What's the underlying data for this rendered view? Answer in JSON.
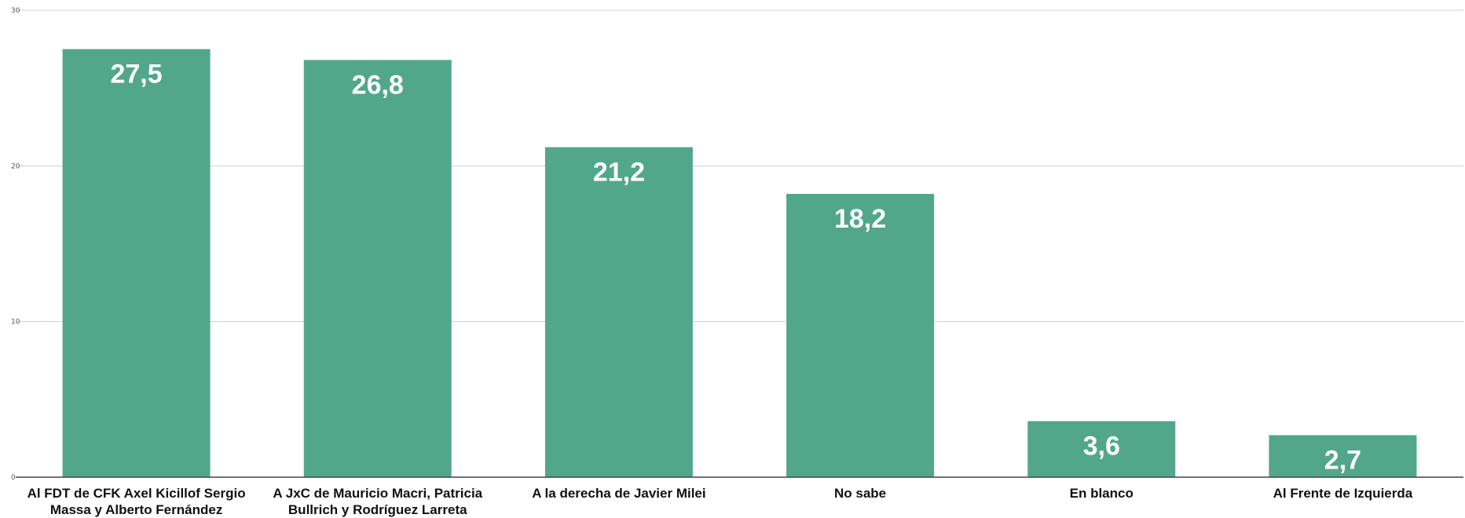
{
  "chart_data": {
    "type": "bar",
    "categories": [
      "Al FDT de CFK Axel Kicillof Sergio Massa y Alberto Fernández",
      "A JxC de Mauricio Macri, Patricia Bullrich y Rodríguez Larreta",
      "A la derecha de Javier Milei",
      "No sabe",
      "En blanco",
      "Al Frente de Izquierda"
    ],
    "category_label_lines": [
      [
        "Al FDT de CFK Axel Kicillof Sergio",
        "Massa y Alberto Fernández"
      ],
      [
        "A JxC de Mauricio Macri, Patricia",
        "Bullrich y Rodríguez Larreta"
      ],
      [
        "A la derecha de Javier Milei"
      ],
      [
        "No sabe"
      ],
      [
        "En blanco"
      ],
      [
        "Al Frente de Izquierda"
      ]
    ],
    "values": [
      27.5,
      26.8,
      21.2,
      18.2,
      3.6,
      2.7
    ],
    "data_labels": [
      "27,5",
      "26,8",
      "21,2",
      "18,2",
      "3,6",
      "2,7"
    ],
    "title": "",
    "xlabel": "",
    "ylabel": "",
    "ylim": [
      0,
      30
    ],
    "yticks": [
      0,
      10,
      20,
      30
    ],
    "grid": true,
    "legend": "none",
    "bar_color": "#52a78b"
  }
}
